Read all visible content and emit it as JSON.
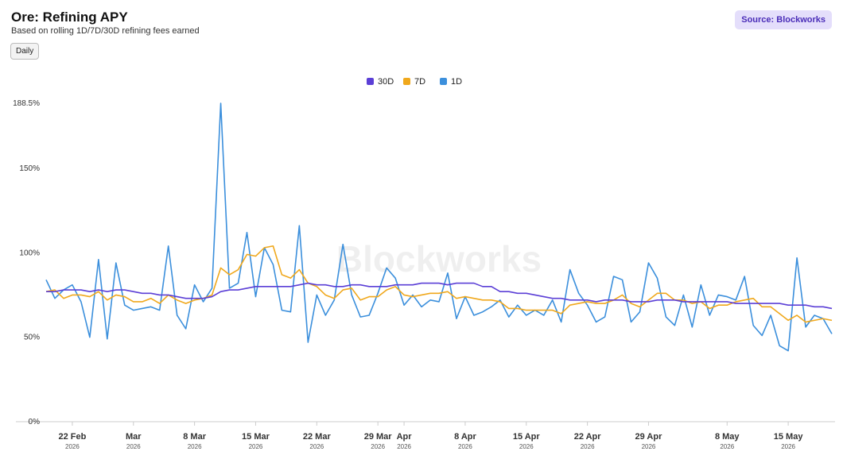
{
  "chart_data": {
    "type": "line",
    "title": "Ore: Refining APY",
    "subtitle": "Based on rolling 1D/7D/30D refining fees earned",
    "button": "Daily",
    "source": "Source: Blockworks",
    "watermark": "Blockworks",
    "grid": false,
    "legend_position": "top",
    "x": [
      "2026-02-19",
      "2026-02-20",
      "2026-02-21",
      "2026-02-22",
      "2026-02-23",
      "2026-02-24",
      "2026-02-25",
      "2026-02-26",
      "2026-02-27",
      "2026-02-28",
      "2026-03-01",
      "2026-03-02",
      "2026-03-03",
      "2026-03-04",
      "2026-03-05",
      "2026-03-06",
      "2026-03-07",
      "2026-03-08",
      "2026-03-09",
      "2026-03-10",
      "2026-03-11",
      "2026-03-12",
      "2026-03-13",
      "2026-03-14",
      "2026-03-15",
      "2026-03-16",
      "2026-03-17",
      "2026-03-18",
      "2026-03-19",
      "2026-03-20",
      "2026-03-21",
      "2026-03-22",
      "2026-03-23",
      "2026-03-24",
      "2026-03-25",
      "2026-03-26",
      "2026-03-27",
      "2026-03-28",
      "2026-03-29",
      "2026-03-30",
      "2026-03-31",
      "2026-04-01",
      "2026-04-02",
      "2026-04-03",
      "2026-04-04",
      "2026-04-05",
      "2026-04-06",
      "2026-04-07",
      "2026-04-08",
      "2026-04-09",
      "2026-04-10",
      "2026-04-11",
      "2026-04-12",
      "2026-04-13",
      "2026-04-14",
      "2026-04-15",
      "2026-04-16",
      "2026-04-17",
      "2026-04-18",
      "2026-04-19",
      "2026-04-20",
      "2026-04-21",
      "2026-04-22",
      "2026-04-23",
      "2026-04-24",
      "2026-04-25",
      "2026-04-26",
      "2026-04-27",
      "2026-04-28",
      "2026-04-29",
      "2026-04-30",
      "2026-05-01",
      "2026-05-02",
      "2026-05-03",
      "2026-05-04",
      "2026-05-05",
      "2026-05-06",
      "2026-05-07",
      "2026-05-08",
      "2026-05-09",
      "2026-05-10",
      "2026-05-11",
      "2026-05-12",
      "2026-05-13",
      "2026-05-14",
      "2026-05-15",
      "2026-05-16",
      "2026-05-17",
      "2026-05-18",
      "2026-05-19",
      "2026-05-20"
    ],
    "xlim": [
      "2026-02-19",
      "2026-05-20"
    ],
    "xticks": [
      {
        "value": "2026-02-22",
        "label": "22 Feb",
        "sublabel": "2026"
      },
      {
        "value": "2026-03-01",
        "label": "Mar",
        "sublabel": "2026"
      },
      {
        "value": "2026-03-08",
        "label": "8 Mar",
        "sublabel": "2026"
      },
      {
        "value": "2026-03-15",
        "label": "15 Mar",
        "sublabel": "2026"
      },
      {
        "value": "2026-03-22",
        "label": "22 Mar",
        "sublabel": "2026"
      },
      {
        "value": "2026-03-29",
        "label": "29 Mar",
        "sublabel": "2026"
      },
      {
        "value": "2026-04-01",
        "label": "Apr",
        "sublabel": "2026"
      },
      {
        "value": "2026-04-08",
        "label": "8 Apr",
        "sublabel": "2026"
      },
      {
        "value": "2026-04-15",
        "label": "15 Apr",
        "sublabel": "2026"
      },
      {
        "value": "2026-04-22",
        "label": "22 Apr",
        "sublabel": "2026"
      },
      {
        "value": "2026-04-29",
        "label": "29 Apr",
        "sublabel": "2026"
      },
      {
        "value": "2026-05-08",
        "label": "8 May",
        "sublabel": "2026"
      },
      {
        "value": "2026-05-15",
        "label": "15 May",
        "sublabel": "2026"
      }
    ],
    "ylim": [
      0,
      188.5
    ],
    "yticks": [
      {
        "value": 0,
        "label": "0%"
      },
      {
        "value": 50,
        "label": "50%"
      },
      {
        "value": 100,
        "label": "100%"
      },
      {
        "value": 150,
        "label": "150%"
      },
      {
        "value": 188.5,
        "label": "188.5%"
      }
    ],
    "series": [
      {
        "name": "30D",
        "color": "#5b3fd6",
        "values": [
          77,
          77,
          78,
          78,
          78,
          77,
          78,
          77,
          78,
          78,
          77,
          76,
          76,
          75,
          75,
          74,
          73,
          73,
          73,
          74,
          77,
          78,
          78,
          79,
          80,
          80,
          80,
          80,
          80,
          81,
          82,
          81,
          81,
          80,
          80,
          81,
          81,
          80,
          80,
          80,
          81,
          81,
          81,
          82,
          82,
          82,
          81,
          82,
          82,
          82,
          80,
          80,
          77,
          77,
          76,
          76,
          75,
          74,
          73,
          73,
          72,
          72,
          72,
          71,
          72,
          72,
          72,
          71,
          71,
          71,
          72,
          72,
          72,
          71,
          71,
          71,
          71,
          71,
          71,
          70,
          70,
          70,
          70,
          70,
          70,
          69,
          69,
          69,
          68,
          68,
          67
        ]
      },
      {
        "name": "7D",
        "color": "#f0a81c",
        "values": [
          77,
          78,
          73,
          75,
          75,
          74,
          77,
          72,
          75,
          74,
          71,
          71,
          73,
          70,
          75,
          72,
          70,
          72,
          73,
          75,
          91,
          87,
          90,
          99,
          98,
          103,
          104,
          87,
          85,
          90,
          82,
          80,
          75,
          73,
          78,
          79,
          72,
          74,
          74,
          78,
          80,
          75,
          74,
          75,
          76,
          76,
          77,
          73,
          74,
          73,
          72,
          72,
          71,
          67,
          67,
          66,
          66,
          66,
          66,
          64,
          69,
          70,
          71,
          70,
          70,
          72,
          75,
          70,
          68,
          72,
          76,
          76,
          72,
          72,
          70,
          71,
          67,
          69,
          69,
          71,
          72,
          73,
          68,
          68,
          64,
          60,
          63,
          59,
          60,
          61,
          60
        ]
      },
      {
        "name": "1D",
        "color": "#3b8fdc",
        "values": [
          84,
          73,
          78,
          81,
          71,
          50,
          96,
          49,
          94,
          69,
          66,
          67,
          68,
          66,
          104,
          63,
          55,
          81,
          71,
          79,
          188.5,
          79,
          82,
          112,
          74,
          103,
          93,
          66,
          65,
          116,
          47,
          75,
          63,
          72,
          105,
          75,
          62,
          63,
          76,
          91,
          85,
          69,
          75,
          68,
          72,
          71,
          88,
          61,
          74,
          63,
          65,
          68,
          72,
          62,
          69,
          63,
          66,
          63,
          72,
          59,
          90,
          76,
          69,
          59,
          62,
          86,
          84,
          59,
          65,
          94,
          85,
          62,
          57,
          75,
          56,
          81,
          63,
          75,
          74,
          72,
          86,
          57,
          51,
          63,
          45,
          42,
          97,
          56,
          63,
          61,
          52
        ]
      }
    ]
  }
}
